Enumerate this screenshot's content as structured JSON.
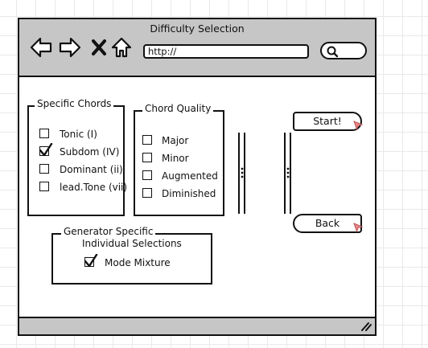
{
  "window": {
    "title": "Difficulty Selection"
  },
  "nav": {
    "back_icon": "arrow-left-icon",
    "forward_icon": "arrow-right-icon",
    "stop_icon": "close-icon",
    "home_icon": "home-icon",
    "url": "http://",
    "search_icon": "search-icon"
  },
  "specific_chords": {
    "title": "Specific Chords",
    "items": [
      {
        "label": "Tonic (I)",
        "checked": false
      },
      {
        "label": "Subdom (IV)",
        "checked": true
      },
      {
        "label": "Dominant (ii)",
        "checked": false
      },
      {
        "label": "lead.Tone (vii)",
        "checked": false
      }
    ]
  },
  "chord_quality": {
    "title": "Chord Quality",
    "items": [
      {
        "label": "Major",
        "checked": false
      },
      {
        "label": "Minor",
        "checked": false
      },
      {
        "label": "Augmented",
        "checked": false
      },
      {
        "label": "Diminished",
        "checked": false
      }
    ]
  },
  "generator": {
    "title": "Generator Specific",
    "subtitle": "Individual Selections",
    "items": [
      {
        "label": "Mode Mixture",
        "checked": true
      }
    ]
  },
  "buttons": {
    "start": "Start!",
    "back": "Back"
  },
  "colors": {
    "chrome": "#c6c6c6",
    "accent": "#e8888a"
  }
}
